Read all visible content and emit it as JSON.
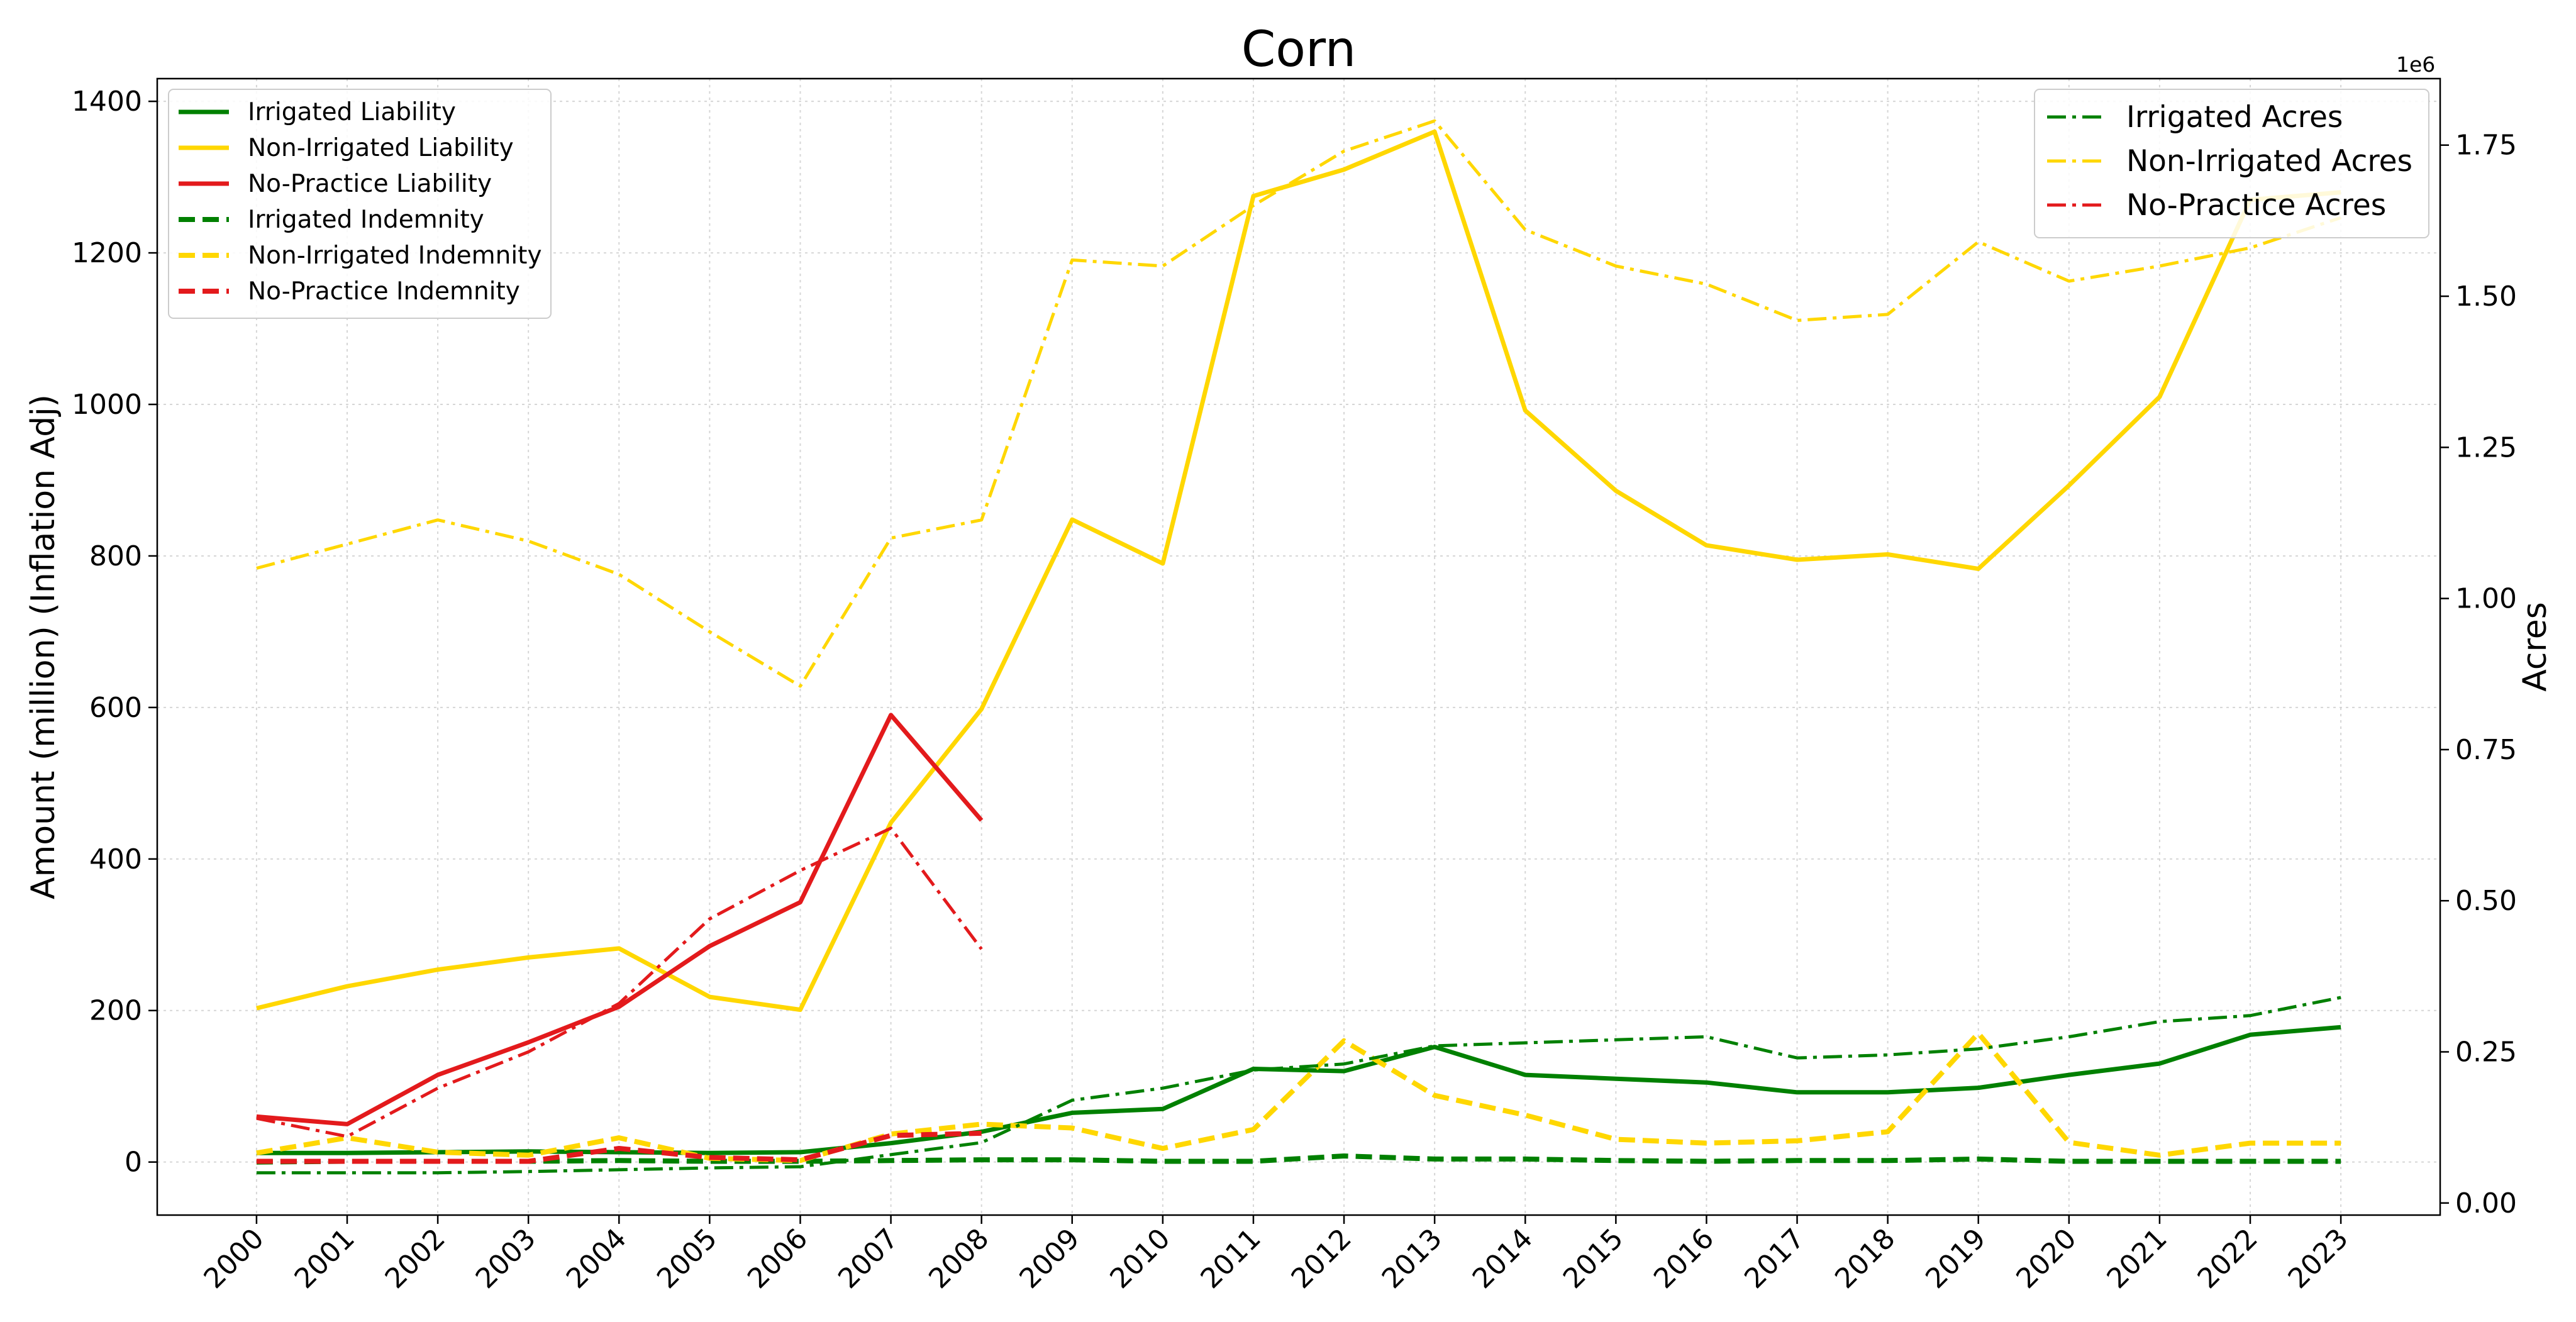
{
  "chart_data": {
    "type": "line",
    "title": "Corn",
    "xlabel": "",
    "ylabel": "Amount (million) (Inflation Adj)",
    "ylabel_right": "Acres",
    "right_axis_offset_text": "1e6",
    "ylim": [
      -70,
      1430
    ],
    "ylim_right": [
      -20000,
      1860000
    ],
    "x": [
      "2000",
      "2001",
      "2002",
      "2003",
      "2004",
      "2005",
      "2006",
      "2007",
      "2008",
      "2009",
      "2010",
      "2011",
      "2012",
      "2013",
      "2014",
      "2015",
      "2016",
      "2017",
      "2018",
      "2019",
      "2020",
      "2021",
      "2022",
      "2023"
    ],
    "yticks": [
      "0",
      "200",
      "400",
      "600",
      "800",
      "1000",
      "1200",
      "1400"
    ],
    "yticks_right": [
      "0.00",
      "0.25",
      "0.50",
      "0.75",
      "1.00",
      "1.25",
      "1.50",
      "1.75"
    ],
    "grid": true,
    "legend_left_placement": "top-left",
    "legend_right_placement": "top-right",
    "colors": {
      "green": "#008000",
      "gold": "#FFD700",
      "red": "#E31A1C"
    },
    "series": [
      {
        "name": "Irrigated Liability",
        "axis": "left",
        "color": "#008000",
        "style": "solid",
        "values": [
          12,
          12,
          13,
          14,
          13,
          12,
          13,
          25,
          40,
          65,
          70,
          123,
          120,
          152,
          115,
          110,
          105,
          92,
          92,
          98,
          115,
          130,
          168,
          178
        ]
      },
      {
        "name": "Non-Irrigated Liability",
        "axis": "left",
        "color": "#FFD700",
        "style": "solid",
        "values": [
          203,
          232,
          254,
          270,
          282,
          218,
          201,
          448,
          598,
          848,
          790,
          1275,
          1310,
          1360,
          992,
          886,
          814,
          795,
          802,
          783,
          893,
          1010,
          1270,
          1280
        ]
      },
      {
        "name": "No-Practice Liability",
        "axis": "left",
        "color": "#E31A1C",
        "style": "solid",
        "values": [
          60,
          50,
          115,
          158,
          205,
          285,
          343,
          590,
          451,
          null,
          null,
          null,
          null,
          null,
          null,
          null,
          null,
          null,
          null,
          null,
          null,
          null,
          null,
          null
        ]
      },
      {
        "name": "Irrigated Indemnity",
        "axis": "left",
        "color": "#008000",
        "style": "dashed",
        "values": [
          0,
          1,
          1,
          1,
          2,
          1,
          1,
          2,
          3,
          3,
          1,
          1,
          8,
          4,
          4,
          2,
          1,
          2,
          2,
          4,
          1,
          1,
          1,
          1
        ]
      },
      {
        "name": "Non-Irrigated Indemnity",
        "axis": "left",
        "color": "#FFD700",
        "style": "dashed",
        "values": [
          12,
          32,
          13,
          9,
          32,
          5,
          2,
          37,
          50,
          45,
          18,
          43,
          160,
          88,
          62,
          30,
          25,
          28,
          40,
          170,
          26,
          9,
          25,
          25
        ]
      },
      {
        "name": "No-Practice Indemnity",
        "axis": "left",
        "color": "#E31A1C",
        "style": "dashed",
        "values": [
          1,
          1,
          1,
          1,
          18,
          6,
          3,
          35,
          38,
          null,
          null,
          null,
          null,
          null,
          null,
          null,
          null,
          null,
          null,
          null,
          null,
          null,
          null,
          null
        ]
      },
      {
        "name": "Irrigated Acres",
        "axis": "right",
        "color": "#008000",
        "style": "dashdot",
        "values": [
          50000,
          50000,
          50000,
          52000,
          55000,
          58000,
          60000,
          80000,
          100000,
          170000,
          190000,
          220000,
          230000,
          260000,
          265000,
          270000,
          275000,
          240000,
          245000,
          255000,
          275000,
          300000,
          310000,
          340000
        ]
      },
      {
        "name": "Non-Irrigated Acres",
        "axis": "right",
        "color": "#FFD700",
        "style": "dashdot",
        "values": [
          1050000,
          1090000,
          1130000,
          1095000,
          1040000,
          945000,
          855000,
          1100000,
          1130000,
          1560000,
          1550000,
          1650000,
          1740000,
          1790000,
          1610000,
          1550000,
          1520000,
          1460000,
          1470000,
          1590000,
          1525000,
          1550000,
          1580000,
          1630000
        ]
      },
      {
        "name": "No-Practice Acres",
        "axis": "right",
        "color": "#E31A1C",
        "style": "dashdot",
        "values": [
          140000,
          110000,
          190000,
          250000,
          330000,
          470000,
          550000,
          620000,
          420000,
          null,
          null,
          null,
          null,
          null,
          null,
          null,
          null,
          null,
          null,
          null,
          null,
          null,
          null,
          null
        ]
      }
    ]
  }
}
